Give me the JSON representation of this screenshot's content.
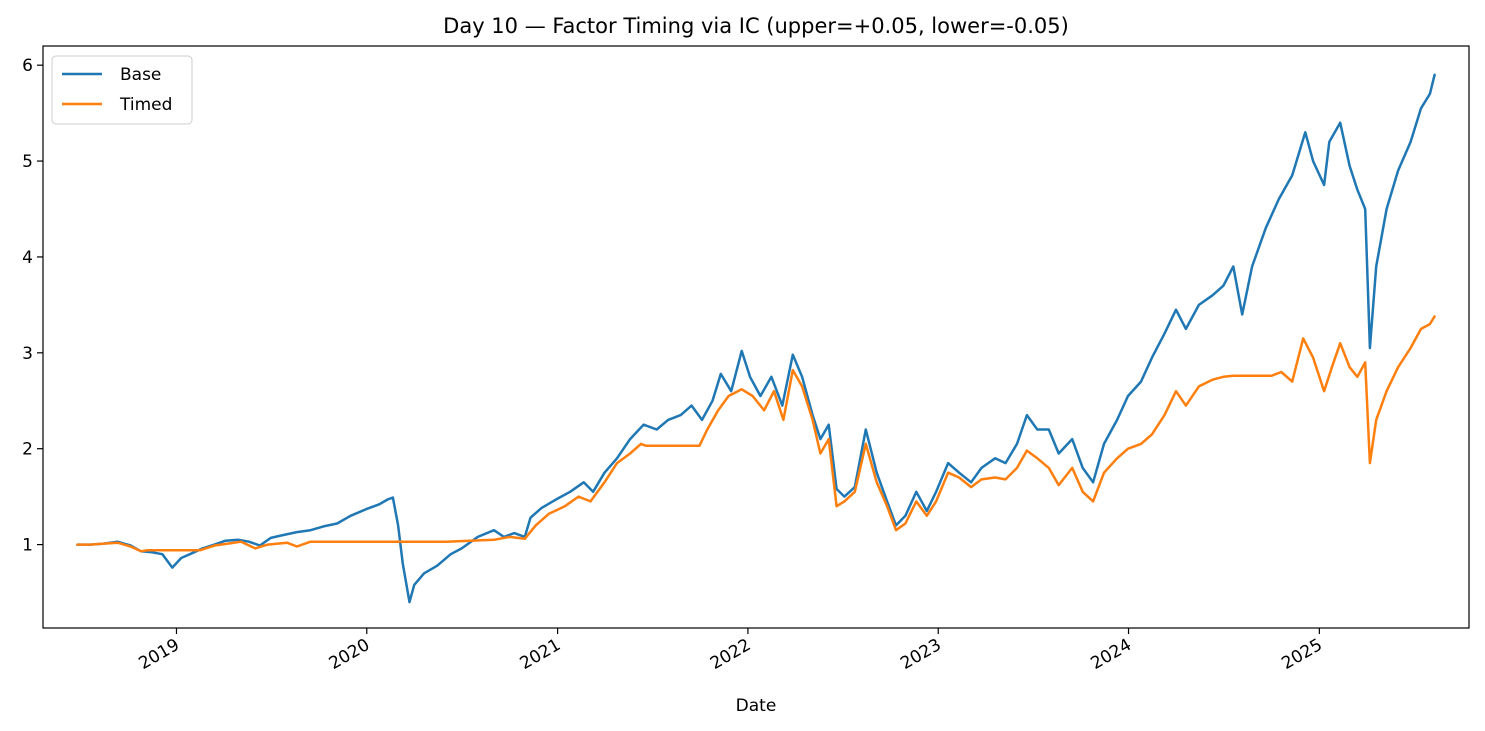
{
  "chart_data": {
    "type": "line",
    "title": "Day 10 — Factor Timing via IC (upper=+0.05, lower=-0.05)",
    "xlabel": "Date",
    "ylabel": "",
    "x_type": "date",
    "xlim": [
      "2018-04-20",
      "2025-10-15"
    ],
    "ylim": [
      0.13,
      6.2
    ],
    "x_ticks": [
      {
        "date": "2019-01-01",
        "label": "2019"
      },
      {
        "date": "2020-01-01",
        "label": "2020"
      },
      {
        "date": "2021-01-01",
        "label": "2021"
      },
      {
        "date": "2022-01-01",
        "label": "2022"
      },
      {
        "date": "2023-01-01",
        "label": "2023"
      },
      {
        "date": "2024-01-01",
        "label": "2024"
      },
      {
        "date": "2025-01-01",
        "label": "2025"
      }
    ],
    "y_ticks": [
      1,
      2,
      3,
      4,
      5,
      6
    ],
    "grid": false,
    "legend_position": "top-left",
    "series": [
      {
        "name": "Base",
        "color": "#1f77b4",
        "points": [
          [
            "2018-06-25",
            1.0
          ],
          [
            "2018-07-20",
            1.0
          ],
          [
            "2018-08-15",
            1.01
          ],
          [
            "2018-09-10",
            1.03
          ],
          [
            "2018-10-05",
            0.99
          ],
          [
            "2018-10-25",
            0.93
          ],
          [
            "2018-11-15",
            0.92
          ],
          [
            "2018-12-05",
            0.9
          ],
          [
            "2018-12-24",
            0.76
          ],
          [
            "2019-01-10",
            0.86
          ],
          [
            "2019-01-31",
            0.91
          ],
          [
            "2019-02-20",
            0.96
          ],
          [
            "2019-03-15",
            1.0
          ],
          [
            "2019-04-05",
            1.04
          ],
          [
            "2019-04-30",
            1.05
          ],
          [
            "2019-05-20",
            1.03
          ],
          [
            "2019-06-10",
            0.99
          ],
          [
            "2019-07-01",
            1.07
          ],
          [
            "2019-07-25",
            1.1
          ],
          [
            "2019-08-20",
            1.13
          ],
          [
            "2019-09-15",
            1.15
          ],
          [
            "2019-10-10",
            1.19
          ],
          [
            "2019-11-05",
            1.22
          ],
          [
            "2019-12-01",
            1.3
          ],
          [
            "2019-12-31",
            1.37
          ],
          [
            "2020-01-25",
            1.42
          ],
          [
            "2020-02-10",
            1.47
          ],
          [
            "2020-02-20",
            1.49
          ],
          [
            "2020-03-01",
            1.2
          ],
          [
            "2020-03-10",
            0.8
          ],
          [
            "2020-03-23",
            0.4
          ],
          [
            "2020-04-01",
            0.58
          ],
          [
            "2020-04-20",
            0.7
          ],
          [
            "2020-05-15",
            0.78
          ],
          [
            "2020-06-10",
            0.9
          ],
          [
            "2020-07-01",
            0.96
          ],
          [
            "2020-08-01",
            1.08
          ],
          [
            "2020-09-01",
            1.15
          ],
          [
            "2020-09-20",
            1.08
          ],
          [
            "2020-10-10",
            1.12
          ],
          [
            "2020-10-30",
            1.08
          ],
          [
            "2020-11-10",
            1.28
          ],
          [
            "2020-12-01",
            1.38
          ],
          [
            "2021-01-01",
            1.48
          ],
          [
            "2021-01-25",
            1.55
          ],
          [
            "2021-02-20",
            1.65
          ],
          [
            "2021-03-10",
            1.55
          ],
          [
            "2021-04-01",
            1.75
          ],
          [
            "2021-04-25",
            1.9
          ],
          [
            "2021-05-20",
            2.1
          ],
          [
            "2021-06-15",
            2.25
          ],
          [
            "2021-07-10",
            2.2
          ],
          [
            "2021-08-01",
            2.3
          ],
          [
            "2021-08-25",
            2.35
          ],
          [
            "2021-09-15",
            2.45
          ],
          [
            "2021-10-05",
            2.3
          ],
          [
            "2021-10-25",
            2.5
          ],
          [
            "2021-11-10",
            2.78
          ],
          [
            "2021-11-30",
            2.6
          ],
          [
            "2021-12-20",
            3.02
          ],
          [
            "2022-01-05",
            2.75
          ],
          [
            "2022-01-25",
            2.55
          ],
          [
            "2022-02-15",
            2.75
          ],
          [
            "2022-03-08",
            2.45
          ],
          [
            "2022-03-28",
            2.98
          ],
          [
            "2022-04-15",
            2.75
          ],
          [
            "2022-05-05",
            2.35
          ],
          [
            "2022-05-20",
            2.1
          ],
          [
            "2022-06-05",
            2.25
          ],
          [
            "2022-06-20",
            1.58
          ],
          [
            "2022-07-05",
            1.5
          ],
          [
            "2022-07-25",
            1.6
          ],
          [
            "2022-08-15",
            2.2
          ],
          [
            "2022-09-05",
            1.75
          ],
          [
            "2022-09-25",
            1.45
          ],
          [
            "2022-10-12",
            1.2
          ],
          [
            "2022-10-30",
            1.3
          ],
          [
            "2022-11-20",
            1.55
          ],
          [
            "2022-12-10",
            1.35
          ],
          [
            "2022-12-28",
            1.55
          ],
          [
            "2023-01-20",
            1.85
          ],
          [
            "2023-02-10",
            1.75
          ],
          [
            "2023-03-05",
            1.65
          ],
          [
            "2023-03-25",
            1.8
          ],
          [
            "2023-04-20",
            1.9
          ],
          [
            "2023-05-10",
            1.85
          ],
          [
            "2023-06-01",
            2.05
          ],
          [
            "2023-06-20",
            2.35
          ],
          [
            "2023-07-10",
            2.2
          ],
          [
            "2023-08-01",
            2.2
          ],
          [
            "2023-08-20",
            1.95
          ],
          [
            "2023-09-15",
            2.1
          ],
          [
            "2023-10-05",
            1.8
          ],
          [
            "2023-10-25",
            1.65
          ],
          [
            "2023-11-15",
            2.05
          ],
          [
            "2023-12-10",
            2.3
          ],
          [
            "2023-12-31",
            2.55
          ],
          [
            "2024-01-25",
            2.7
          ],
          [
            "2024-02-15",
            2.95
          ],
          [
            "2024-03-10",
            3.2
          ],
          [
            "2024-04-01",
            3.45
          ],
          [
            "2024-04-20",
            3.25
          ],
          [
            "2024-05-15",
            3.5
          ],
          [
            "2024-06-10",
            3.6
          ],
          [
            "2024-07-01",
            3.7
          ],
          [
            "2024-07-20",
            3.9
          ],
          [
            "2024-08-06",
            3.4
          ],
          [
            "2024-08-25",
            3.9
          ],
          [
            "2024-09-20",
            4.3
          ],
          [
            "2024-10-15",
            4.6
          ],
          [
            "2024-11-10",
            4.85
          ],
          [
            "2024-12-05",
            5.3
          ],
          [
            "2024-12-20",
            5.0
          ],
          [
            "2025-01-10",
            4.75
          ],
          [
            "2025-01-20",
            5.2
          ],
          [
            "2025-02-10",
            5.4
          ],
          [
            "2025-02-28",
            4.95
          ],
          [
            "2025-03-15",
            4.7
          ],
          [
            "2025-03-30",
            4.5
          ],
          [
            "2025-04-08",
            3.05
          ],
          [
            "2025-04-20",
            3.9
          ],
          [
            "2025-05-10",
            4.5
          ],
          [
            "2025-06-01",
            4.9
          ],
          [
            "2025-06-25",
            5.2
          ],
          [
            "2025-07-15",
            5.55
          ],
          [
            "2025-08-01",
            5.7
          ],
          [
            "2025-08-10",
            5.9
          ]
        ]
      },
      {
        "name": "Timed",
        "color": "#ff7f0e",
        "points": [
          [
            "2018-06-25",
            1.0
          ],
          [
            "2018-07-20",
            1.0
          ],
          [
            "2018-08-15",
            1.01
          ],
          [
            "2018-09-10",
            1.02
          ],
          [
            "2018-10-05",
            0.98
          ],
          [
            "2018-10-25",
            0.93
          ],
          [
            "2018-11-05",
            0.94
          ],
          [
            "2018-12-15",
            0.94
          ],
          [
            "2019-02-15",
            0.94
          ],
          [
            "2019-03-15",
            0.99
          ],
          [
            "2019-04-10",
            1.01
          ],
          [
            "2019-05-05",
            1.03
          ],
          [
            "2019-06-01",
            0.96
          ],
          [
            "2019-06-25",
            1.0
          ],
          [
            "2019-08-01",
            1.02
          ],
          [
            "2019-08-20",
            0.98
          ],
          [
            "2019-09-15",
            1.03
          ],
          [
            "2019-12-01",
            1.03
          ],
          [
            "2020-06-01",
            1.03
          ],
          [
            "2020-09-01",
            1.05
          ],
          [
            "2020-10-01",
            1.08
          ],
          [
            "2020-10-30",
            1.06
          ],
          [
            "2020-11-20",
            1.2
          ],
          [
            "2020-12-15",
            1.32
          ],
          [
            "2021-01-15",
            1.4
          ],
          [
            "2021-02-10",
            1.5
          ],
          [
            "2021-03-05",
            1.45
          ],
          [
            "2021-04-01",
            1.65
          ],
          [
            "2021-04-25",
            1.85
          ],
          [
            "2021-05-20",
            1.95
          ],
          [
            "2021-06-10",
            2.05
          ],
          [
            "2021-06-20",
            2.03
          ],
          [
            "2021-09-30",
            2.03
          ],
          [
            "2021-10-15",
            2.2
          ],
          [
            "2021-11-05",
            2.4
          ],
          [
            "2021-11-25",
            2.55
          ],
          [
            "2021-12-20",
            2.62
          ],
          [
            "2022-01-10",
            2.55
          ],
          [
            "2022-02-01",
            2.4
          ],
          [
            "2022-02-20",
            2.6
          ],
          [
            "2022-03-10",
            2.3
          ],
          [
            "2022-03-28",
            2.82
          ],
          [
            "2022-04-15",
            2.65
          ],
          [
            "2022-05-05",
            2.3
          ],
          [
            "2022-05-20",
            1.95
          ],
          [
            "2022-06-05",
            2.1
          ],
          [
            "2022-06-20",
            1.4
          ],
          [
            "2022-07-05",
            1.45
          ],
          [
            "2022-07-25",
            1.55
          ],
          [
            "2022-08-15",
            2.05
          ],
          [
            "2022-09-05",
            1.65
          ],
          [
            "2022-09-25",
            1.4
          ],
          [
            "2022-10-12",
            1.15
          ],
          [
            "2022-10-30",
            1.22
          ],
          [
            "2022-11-20",
            1.45
          ],
          [
            "2022-12-10",
            1.3
          ],
          [
            "2022-12-28",
            1.45
          ],
          [
            "2023-01-20",
            1.75
          ],
          [
            "2023-02-10",
            1.7
          ],
          [
            "2023-03-05",
            1.6
          ],
          [
            "2023-03-25",
            1.68
          ],
          [
            "2023-04-20",
            1.7
          ],
          [
            "2023-05-10",
            1.68
          ],
          [
            "2023-06-01",
            1.8
          ],
          [
            "2023-06-20",
            1.98
          ],
          [
            "2023-07-10",
            1.9
          ],
          [
            "2023-08-01",
            1.8
          ],
          [
            "2023-08-20",
            1.62
          ],
          [
            "2023-09-15",
            1.8
          ],
          [
            "2023-10-05",
            1.55
          ],
          [
            "2023-10-25",
            1.45
          ],
          [
            "2023-11-15",
            1.75
          ],
          [
            "2023-12-10",
            1.9
          ],
          [
            "2023-12-31",
            2.0
          ],
          [
            "2024-01-25",
            2.05
          ],
          [
            "2024-02-15",
            2.15
          ],
          [
            "2024-03-10",
            2.35
          ],
          [
            "2024-04-01",
            2.6
          ],
          [
            "2024-04-20",
            2.45
          ],
          [
            "2024-05-15",
            2.65
          ],
          [
            "2024-06-10",
            2.72
          ],
          [
            "2024-07-01",
            2.75
          ],
          [
            "2024-07-20",
            2.76
          ],
          [
            "2024-10-01",
            2.76
          ],
          [
            "2024-10-20",
            2.8
          ],
          [
            "2024-11-10",
            2.7
          ],
          [
            "2024-12-01",
            3.15
          ],
          [
            "2024-12-20",
            2.95
          ],
          [
            "2025-01-10",
            2.6
          ],
          [
            "2025-01-25",
            2.85
          ],
          [
            "2025-02-10",
            3.1
          ],
          [
            "2025-02-28",
            2.85
          ],
          [
            "2025-03-15",
            2.75
          ],
          [
            "2025-03-30",
            2.9
          ],
          [
            "2025-04-08",
            1.85
          ],
          [
            "2025-04-20",
            2.3
          ],
          [
            "2025-05-10",
            2.6
          ],
          [
            "2025-06-01",
            2.85
          ],
          [
            "2025-06-25",
            3.05
          ],
          [
            "2025-07-15",
            3.25
          ],
          [
            "2025-08-01",
            3.3
          ],
          [
            "2025-08-10",
            3.38
          ]
        ]
      }
    ]
  }
}
